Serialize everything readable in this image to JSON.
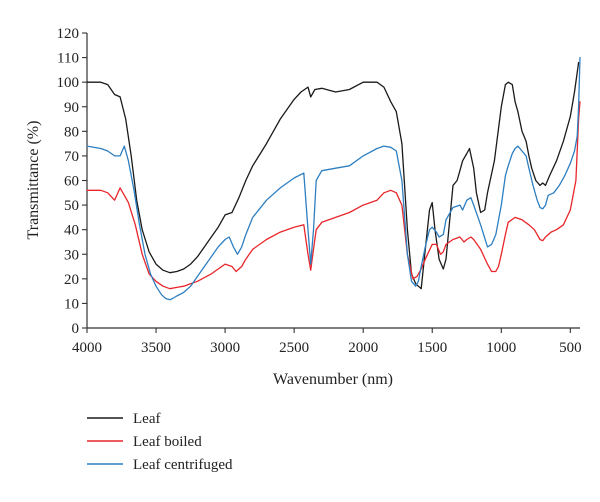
{
  "chart_data": {
    "type": "line",
    "xlabel": "Wavenumber (nm)",
    "ylabel": "Transmittance (%)",
    "xlim": [
      4000,
      430
    ],
    "ylim": [
      0,
      120
    ],
    "x_ticks": [
      4000,
      3500,
      3000,
      2500,
      2000,
      1500,
      1000,
      500
    ],
    "y_ticks": [
      0,
      10,
      20,
      30,
      40,
      50,
      60,
      70,
      80,
      90,
      100,
      110,
      120
    ],
    "grid": false,
    "legend_position": "bottom-left",
    "series": [
      {
        "name": "Leaf",
        "color": "#1a1a1a",
        "points": [
          [
            4000,
            100
          ],
          [
            3900,
            100
          ],
          [
            3850,
            99
          ],
          [
            3800,
            95
          ],
          [
            3760,
            94
          ],
          [
            3720,
            85
          ],
          [
            3680,
            70
          ],
          [
            3640,
            52
          ],
          [
            3600,
            40
          ],
          [
            3550,
            31
          ],
          [
            3500,
            26
          ],
          [
            3450,
            23.5
          ],
          [
            3400,
            22.5
          ],
          [
            3350,
            23
          ],
          [
            3300,
            24
          ],
          [
            3250,
            26
          ],
          [
            3200,
            29
          ],
          [
            3150,
            33
          ],
          [
            3100,
            37
          ],
          [
            3050,
            41
          ],
          [
            3000,
            46
          ],
          [
            2950,
            47
          ],
          [
            2900,
            53
          ],
          [
            2850,
            60
          ],
          [
            2800,
            66
          ],
          [
            2700,
            75
          ],
          [
            2600,
            85
          ],
          [
            2500,
            93
          ],
          [
            2450,
            96
          ],
          [
            2400,
            98
          ],
          [
            2380,
            94
          ],
          [
            2350,
            97
          ],
          [
            2300,
            97.5
          ],
          [
            2200,
            96
          ],
          [
            2100,
            97
          ],
          [
            2000,
            100
          ],
          [
            1900,
            100
          ],
          [
            1850,
            98
          ],
          [
            1800,
            92
          ],
          [
            1760,
            88
          ],
          [
            1720,
            75
          ],
          [
            1680,
            40
          ],
          [
            1650,
            22
          ],
          [
            1620,
            18
          ],
          [
            1580,
            16
          ],
          [
            1550,
            32
          ],
          [
            1520,
            48
          ],
          [
            1500,
            51
          ],
          [
            1480,
            40
          ],
          [
            1450,
            28
          ],
          [
            1420,
            24
          ],
          [
            1400,
            28
          ],
          [
            1380,
            40
          ],
          [
            1350,
            58
          ],
          [
            1320,
            60
          ],
          [
            1300,
            64
          ],
          [
            1280,
            68
          ],
          [
            1250,
            71
          ],
          [
            1230,
            73
          ],
          [
            1200,
            65
          ],
          [
            1180,
            55
          ],
          [
            1150,
            47
          ],
          [
            1120,
            48
          ],
          [
            1100,
            55
          ],
          [
            1050,
            68
          ],
          [
            1000,
            90
          ],
          [
            970,
            99
          ],
          [
            950,
            100
          ],
          [
            920,
            99
          ],
          [
            900,
            92
          ],
          [
            880,
            88
          ],
          [
            850,
            80
          ],
          [
            820,
            76
          ],
          [
            800,
            70
          ],
          [
            780,
            65
          ],
          [
            750,
            60
          ],
          [
            720,
            58
          ],
          [
            700,
            59
          ],
          [
            680,
            58
          ],
          [
            650,
            62
          ],
          [
            600,
            68
          ],
          [
            550,
            76
          ],
          [
            500,
            86
          ],
          [
            470,
            96
          ],
          [
            440,
            108
          ]
        ]
      },
      {
        "name": "Leaf boiled",
        "color": "#e8262b",
        "points": [
          [
            4000,
            56
          ],
          [
            3900,
            56
          ],
          [
            3850,
            55
          ],
          [
            3800,
            52
          ],
          [
            3760,
            57
          ],
          [
            3730,
            54
          ],
          [
            3700,
            51
          ],
          [
            3650,
            42
          ],
          [
            3600,
            30
          ],
          [
            3550,
            22
          ],
          [
            3500,
            19
          ],
          [
            3450,
            17
          ],
          [
            3400,
            16
          ],
          [
            3350,
            16.5
          ],
          [
            3300,
            17
          ],
          [
            3250,
            18
          ],
          [
            3200,
            19
          ],
          [
            3150,
            20.5
          ],
          [
            3100,
            22
          ],
          [
            3050,
            24
          ],
          [
            3000,
            26
          ],
          [
            2950,
            25
          ],
          [
            2920,
            23
          ],
          [
            2880,
            25
          ],
          [
            2850,
            28
          ],
          [
            2800,
            32
          ],
          [
            2700,
            36
          ],
          [
            2600,
            39
          ],
          [
            2500,
            41
          ],
          [
            2430,
            42
          ],
          [
            2400,
            30
          ],
          [
            2380,
            23.5
          ],
          [
            2360,
            32
          ],
          [
            2340,
            40
          ],
          [
            2300,
            43
          ],
          [
            2200,
            45
          ],
          [
            2100,
            47
          ],
          [
            2000,
            50
          ],
          [
            1900,
            52
          ],
          [
            1850,
            55
          ],
          [
            1800,
            56
          ],
          [
            1760,
            55
          ],
          [
            1720,
            50
          ],
          [
            1680,
            30
          ],
          [
            1640,
            20
          ],
          [
            1610,
            21
          ],
          [
            1580,
            24
          ],
          [
            1550,
            28
          ],
          [
            1500,
            34
          ],
          [
            1470,
            34
          ],
          [
            1440,
            30
          ],
          [
            1420,
            31
          ],
          [
            1400,
            34
          ],
          [
            1350,
            36
          ],
          [
            1300,
            37
          ],
          [
            1270,
            35
          ],
          [
            1250,
            36
          ],
          [
            1220,
            37
          ],
          [
            1200,
            36
          ],
          [
            1150,
            32
          ],
          [
            1100,
            26
          ],
          [
            1070,
            23
          ],
          [
            1040,
            23
          ],
          [
            1020,
            25
          ],
          [
            1000,
            30
          ],
          [
            970,
            38
          ],
          [
            950,
            43
          ],
          [
            900,
            45
          ],
          [
            850,
            44
          ],
          [
            800,
            42
          ],
          [
            760,
            40
          ],
          [
            720,
            36
          ],
          [
            700,
            35.5
          ],
          [
            680,
            37
          ],
          [
            640,
            39
          ],
          [
            600,
            40
          ],
          [
            550,
            42
          ],
          [
            500,
            48
          ],
          [
            460,
            60
          ],
          [
            440,
            85
          ],
          [
            430,
            92
          ]
        ]
      },
      {
        "name": "Leaf centrifuged",
        "color": "#2e7fc1",
        "points": [
          [
            4000,
            74
          ],
          [
            3900,
            73
          ],
          [
            3850,
            72
          ],
          [
            3800,
            70
          ],
          [
            3760,
            70
          ],
          [
            3730,
            74
          ],
          [
            3700,
            68
          ],
          [
            3660,
            56
          ],
          [
            3620,
            42
          ],
          [
            3580,
            30
          ],
          [
            3540,
            22
          ],
          [
            3500,
            17
          ],
          [
            3460,
            13.5
          ],
          [
            3430,
            12
          ],
          [
            3400,
            11.5
          ],
          [
            3380,
            12
          ],
          [
            3350,
            13
          ],
          [
            3300,
            14.5
          ],
          [
            3250,
            17
          ],
          [
            3200,
            21
          ],
          [
            3150,
            25
          ],
          [
            3100,
            29
          ],
          [
            3050,
            33
          ],
          [
            3000,
            36
          ],
          [
            2970,
            37
          ],
          [
            2940,
            33
          ],
          [
            2910,
            30
          ],
          [
            2880,
            33
          ],
          [
            2850,
            38
          ],
          [
            2800,
            45
          ],
          [
            2700,
            52
          ],
          [
            2600,
            57
          ],
          [
            2500,
            61
          ],
          [
            2430,
            63
          ],
          [
            2400,
            40
          ],
          [
            2380,
            26
          ],
          [
            2360,
            40
          ],
          [
            2340,
            60
          ],
          [
            2320,
            62
          ],
          [
            2300,
            64
          ],
          [
            2200,
            65
          ],
          [
            2100,
            66
          ],
          [
            2000,
            70
          ],
          [
            1900,
            73
          ],
          [
            1850,
            74
          ],
          [
            1800,
            73.5
          ],
          [
            1760,
            72
          ],
          [
            1720,
            60
          ],
          [
            1680,
            30
          ],
          [
            1650,
            19
          ],
          [
            1620,
            17
          ],
          [
            1600,
            19
          ],
          [
            1580,
            25
          ],
          [
            1550,
            33
          ],
          [
            1520,
            40
          ],
          [
            1500,
            41
          ],
          [
            1470,
            39
          ],
          [
            1450,
            37
          ],
          [
            1420,
            38
          ],
          [
            1400,
            44
          ],
          [
            1350,
            49
          ],
          [
            1300,
            50
          ],
          [
            1280,
            48
          ],
          [
            1250,
            52
          ],
          [
            1220,
            53
          ],
          [
            1200,
            50
          ],
          [
            1150,
            42
          ],
          [
            1100,
            33
          ],
          [
            1070,
            34
          ],
          [
            1040,
            38
          ],
          [
            1000,
            50
          ],
          [
            970,
            62
          ],
          [
            950,
            66
          ],
          [
            920,
            71
          ],
          [
            900,
            73
          ],
          [
            880,
            74
          ],
          [
            850,
            72
          ],
          [
            820,
            70
          ],
          [
            800,
            65
          ],
          [
            770,
            58
          ],
          [
            740,
            52
          ],
          [
            720,
            49
          ],
          [
            700,
            48.5
          ],
          [
            680,
            50
          ],
          [
            660,
            54
          ],
          [
            620,
            55
          ],
          [
            580,
            58
          ],
          [
            540,
            62
          ],
          [
            500,
            67
          ],
          [
            470,
            72
          ],
          [
            450,
            78
          ],
          [
            440,
            90
          ],
          [
            430,
            110
          ]
        ]
      }
    ]
  }
}
